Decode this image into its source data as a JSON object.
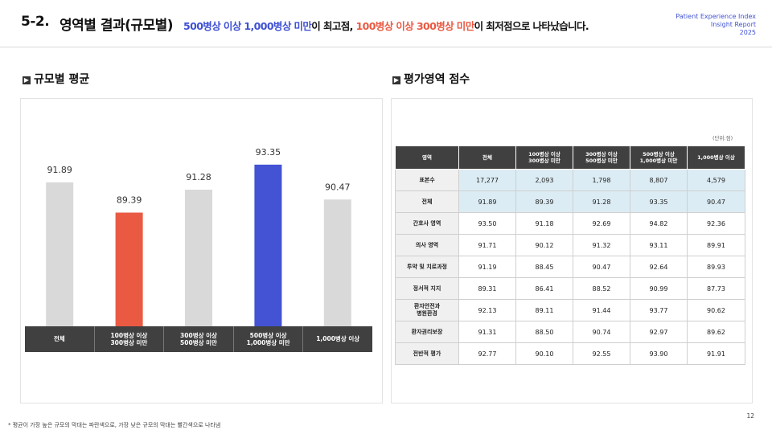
{
  "header": {
    "number": "5-2.",
    "title": "영역별 결과(규모별)",
    "subtitle": {
      "part1": "500병상 이상 1,000병상 미만",
      "part2": "이 최고점, ",
      "part3": "100병상 이상 300병상 미만",
      "part4": "이 최저점으로 나타났습니다."
    },
    "brand": {
      "line1": "Patient Experience Index",
      "line2": "Insight Report",
      "line3": "2025"
    }
  },
  "left_section": {
    "mark": "▶",
    "title": "규모별 평균"
  },
  "right_section": {
    "mark": "▶",
    "title": "평가영역 점수"
  },
  "colors": {
    "gray": "#d9d9d9",
    "red": "#ea5a43",
    "blue": "#4353d4",
    "header_dark": "#404040",
    "highlight": "#dcecf4"
  },
  "chart_data": {
    "type": "bar",
    "categories": [
      "전체",
      "100병상 이상\n300병상 미만",
      "300병상 이상\n500병상 미만",
      "500병상 이상\n1,000병상 미만",
      "1,000병상 이상"
    ],
    "values": [
      91.89,
      89.39,
      91.28,
      93.35,
      90.47
    ],
    "value_labels": [
      "91.89",
      "89.39",
      "91.28",
      "93.35",
      "90.47"
    ],
    "bar_colors": [
      "#d9d9d9",
      "#ea5a43",
      "#d9d9d9",
      "#4353d4",
      "#d9d9d9"
    ],
    "title": "",
    "xlabel": "",
    "ylabel": "",
    "ylim": [
      80,
      95
    ],
    "grid": false
  },
  "table": {
    "unit": "(단위:점)",
    "headers": [
      "영역",
      "전체",
      "100병상 이상\n300병상 미만",
      "300병상 이상\n500병상 미만",
      "500병상 이상\n1,000병상 미만",
      "1,000병상 이상"
    ],
    "rows": [
      {
        "label": "표본수",
        "values": [
          "17,277",
          "2,093",
          "1,798",
          "8,807",
          "4,579"
        ],
        "highlight": true
      },
      {
        "label": "전체",
        "values": [
          "91.89",
          "89.39",
          "91.28",
          "93.35",
          "90.47"
        ],
        "highlight": true
      },
      {
        "label": "간호사 영역",
        "values": [
          "93.50",
          "91.18",
          "92.69",
          "94.82",
          "92.36"
        ],
        "highlight": false
      },
      {
        "label": "의사 영역",
        "values": [
          "91.71",
          "90.12",
          "91.32",
          "93.11",
          "89.91"
        ],
        "highlight": false
      },
      {
        "label": "투약 및 치료과정",
        "values": [
          "91.19",
          "88.45",
          "90.47",
          "92.64",
          "89.93"
        ],
        "highlight": false
      },
      {
        "label": "정서적 지지",
        "values": [
          "89.31",
          "86.41",
          "88.52",
          "90.99",
          "87.73"
        ],
        "highlight": false
      },
      {
        "label": "환자안전과\n병원환경",
        "values": [
          "92.13",
          "89.11",
          "91.44",
          "93.77",
          "90.62"
        ],
        "highlight": false
      },
      {
        "label": "환자권리보장",
        "values": [
          "91.31",
          "88.50",
          "90.74",
          "92.97",
          "89.62"
        ],
        "highlight": false
      },
      {
        "label": "전반적 평가",
        "values": [
          "92.77",
          "90.10",
          "92.55",
          "93.90",
          "91.91"
        ],
        "highlight": false
      }
    ]
  },
  "footnote": "* 평균이 가장 높은 규모의 막대는 파란색으로, 가장 낮은 규모의 막대는 빨간색으로 나타냄",
  "page_number": "12"
}
